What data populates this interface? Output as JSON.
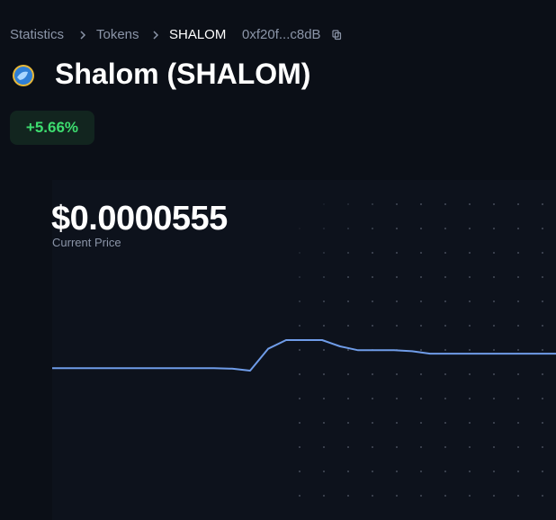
{
  "breadcrumb": {
    "items": [
      "Statistics",
      "Tokens",
      "SHALOM"
    ],
    "address": "0xf20f...c8dB"
  },
  "token": {
    "name": "Shalom (SHALOM)",
    "change": "+5.66%",
    "price": "$0.0000555",
    "price_label": "Current Price"
  },
  "chart_data": {
    "type": "line",
    "color": "#6f9ce8",
    "values": [
      5.25e-05,
      5.25e-05,
      5.25e-05,
      5.25e-05,
      5.25e-05,
      5.25e-05,
      5.25e-05,
      5.25e-05,
      5.25e-05,
      5.25e-05,
      5.24e-05,
      5.2e-05,
      5.65e-05,
      5.83e-05,
      5.83e-05,
      5.83e-05,
      5.7e-05,
      5.62e-05,
      5.62e-05,
      5.62e-05,
      5.6e-05,
      5.55e-05,
      5.55e-05,
      5.55e-05,
      5.55e-05,
      5.55e-05,
      5.55e-05,
      5.55e-05,
      5.55e-05
    ]
  }
}
